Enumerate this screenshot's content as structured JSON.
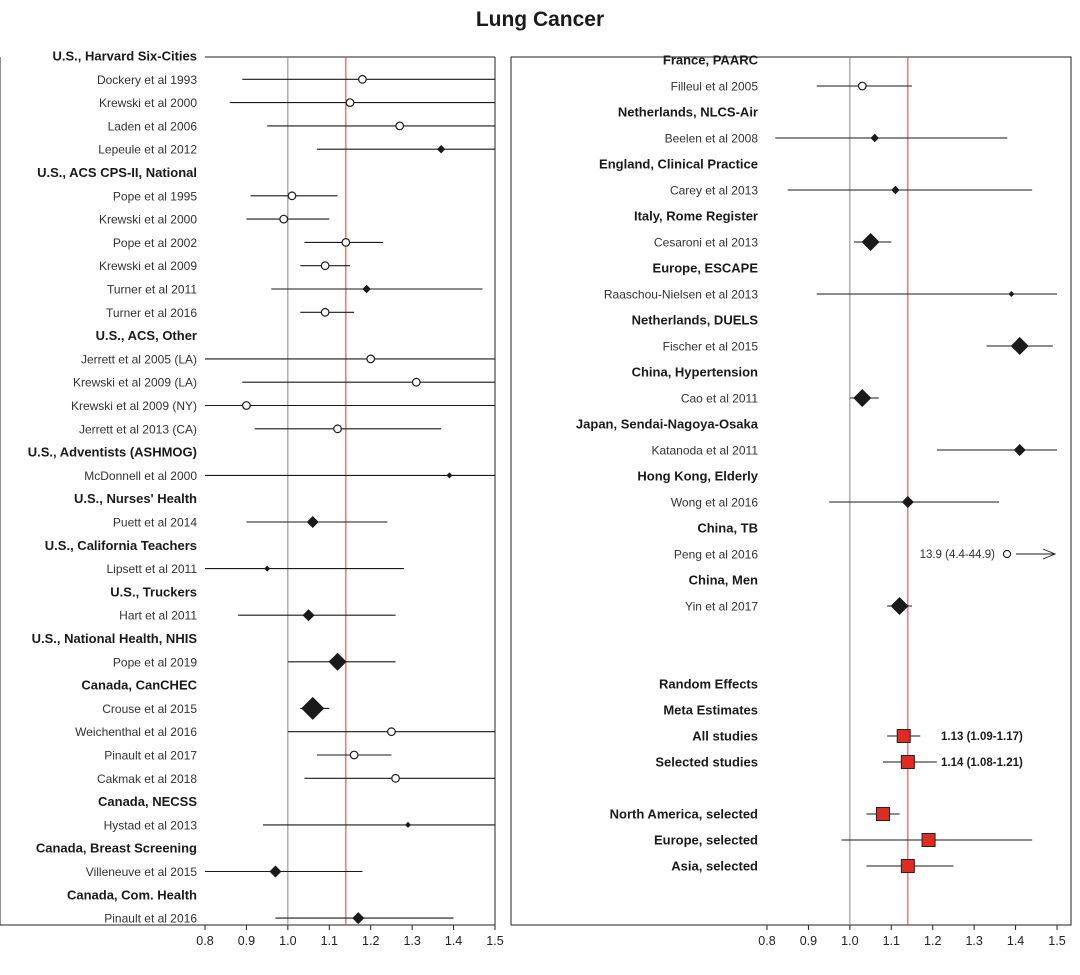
{
  "title": "Lung Cancer",
  "colors": {
    "reference_line": "#888888",
    "pooled_line": "#e53935",
    "pooled_marker": "#e02b20",
    "marker": "#1a1a1a",
    "ci_line": "#1a1a1a"
  },
  "chart_data": [
    {
      "type": "forest",
      "panel": "left",
      "xlim": [
        0.8,
        1.5
      ],
      "xticks": [
        "0.8",
        "0.9",
        "1.0",
        "1.1",
        "1.2",
        "1.3",
        "1.4",
        "1.5"
      ],
      "reference_value": 1.0,
      "pooled_value": 1.14,
      "rows": [
        {
          "kind": "group",
          "label": "U.S., Harvard Six-Cities"
        },
        {
          "kind": "study",
          "label": "Dockery et al 1993",
          "est": 1.18,
          "lo": 0.89,
          "hi": 1.5,
          "marker": "circle",
          "size": "small"
        },
        {
          "kind": "study",
          "label": "Krewski et al 2000",
          "est": 1.15,
          "lo": 0.86,
          "hi": 1.5,
          "marker": "circle",
          "size": "small"
        },
        {
          "kind": "study",
          "label": "Laden et al 2006",
          "est": 1.27,
          "lo": 0.95,
          "hi": 1.5,
          "marker": "circle",
          "size": "small"
        },
        {
          "kind": "study",
          "label": "Lepeule et al 2012",
          "est": 1.37,
          "lo": 1.07,
          "hi": 1.5,
          "marker": "diamond",
          "size": "small"
        },
        {
          "kind": "group",
          "label": "U.S., ACS CPS-II, National"
        },
        {
          "kind": "study",
          "label": "Pope et al 1995",
          "est": 1.01,
          "lo": 0.91,
          "hi": 1.12,
          "marker": "circle",
          "size": "small"
        },
        {
          "kind": "study",
          "label": "Krewski et al 2000",
          "est": 0.99,
          "lo": 0.9,
          "hi": 1.1,
          "marker": "circle",
          "size": "small"
        },
        {
          "kind": "study",
          "label": "Pope et al 2002",
          "est": 1.14,
          "lo": 1.04,
          "hi": 1.23,
          "marker": "circle",
          "size": "small"
        },
        {
          "kind": "study",
          "label": "Krewski et al 2009",
          "est": 1.09,
          "lo": 1.03,
          "hi": 1.15,
          "marker": "circle",
          "size": "small"
        },
        {
          "kind": "study",
          "label": "Turner et al 2011",
          "est": 1.19,
          "lo": 0.96,
          "hi": 1.47,
          "marker": "diamond",
          "size": "small"
        },
        {
          "kind": "study",
          "label": "Turner et al 2016",
          "est": 1.09,
          "lo": 1.03,
          "hi": 1.16,
          "marker": "circle",
          "size": "small"
        },
        {
          "kind": "group",
          "label": "U.S., ACS, Other"
        },
        {
          "kind": "study",
          "label": "Jerrett et al 2005 (LA)",
          "est": 1.2,
          "lo": 0.8,
          "hi": 1.5,
          "marker": "circle",
          "size": "small"
        },
        {
          "kind": "study",
          "label": "Krewski et al 2009 (LA)",
          "est": 1.31,
          "lo": 0.89,
          "hi": 1.5,
          "marker": "circle",
          "size": "small"
        },
        {
          "kind": "study",
          "label": "Krewski et al 2009 (NY)",
          "est": 0.9,
          "lo": 0.8,
          "hi": 1.5,
          "marker": "circle",
          "size": "small"
        },
        {
          "kind": "study",
          "label": "Jerrett et al 2013 (CA)",
          "est": 1.12,
          "lo": 0.92,
          "hi": 1.37,
          "marker": "circle",
          "size": "small"
        },
        {
          "kind": "group",
          "label": "U.S., Adventists (ASHMOG)"
        },
        {
          "kind": "study",
          "label": "McDonnell et al 2000",
          "est": 1.39,
          "lo": 0.8,
          "hi": 1.5,
          "marker": "diamond",
          "size": "tiny"
        },
        {
          "kind": "group",
          "label": "U.S., Nurses' Health"
        },
        {
          "kind": "study",
          "label": "Puett et al 2014",
          "est": 1.06,
          "lo": 0.9,
          "hi": 1.24,
          "marker": "diamond",
          "size": "medium"
        },
        {
          "kind": "group",
          "label": "U.S., California Teachers"
        },
        {
          "kind": "study",
          "label": "Lipsett et al 2011",
          "est": 0.95,
          "lo": 0.8,
          "hi": 1.28,
          "marker": "diamond",
          "size": "tiny"
        },
        {
          "kind": "group",
          "label": "U.S., Truckers"
        },
        {
          "kind": "study",
          "label": "Hart et al 2011",
          "est": 1.05,
          "lo": 0.88,
          "hi": 1.26,
          "marker": "diamond",
          "size": "medium"
        },
        {
          "kind": "group",
          "label": "U.S., National Health, NHIS"
        },
        {
          "kind": "study",
          "label": "Pope et al 2019",
          "est": 1.12,
          "lo": 1.0,
          "hi": 1.26,
          "marker": "diamond",
          "size": "large"
        },
        {
          "kind": "group",
          "label": "Canada, CanCHEC"
        },
        {
          "kind": "study",
          "label": "Crouse et al 2015",
          "est": 1.06,
          "lo": 1.03,
          "hi": 1.1,
          "marker": "diamond",
          "size": "xlarge"
        },
        {
          "kind": "study",
          "label": "Weichenthal et al 2016",
          "est": 1.25,
          "lo": 1.0,
          "hi": 1.5,
          "marker": "circle",
          "size": "small"
        },
        {
          "kind": "study",
          "label": "Pinault et al 2017",
          "est": 1.16,
          "lo": 1.07,
          "hi": 1.25,
          "marker": "circle",
          "size": "small"
        },
        {
          "kind": "study",
          "label": "Cakmak et al 2018",
          "est": 1.26,
          "lo": 1.04,
          "hi": 1.5,
          "marker": "circle",
          "size": "small"
        },
        {
          "kind": "group",
          "label": "Canada, NECSS"
        },
        {
          "kind": "study",
          "label": "Hystad et al 2013",
          "est": 1.29,
          "lo": 0.94,
          "hi": 1.5,
          "marker": "diamond",
          "size": "tiny"
        },
        {
          "kind": "group",
          "label": "Canada, Breast Screening"
        },
        {
          "kind": "study",
          "label": "Villeneuve et al 2015",
          "est": 0.97,
          "lo": 0.8,
          "hi": 1.18,
          "marker": "diamond",
          "size": "medium"
        },
        {
          "kind": "group",
          "label": "Canada, Com. Health"
        },
        {
          "kind": "study",
          "label": "Pinault et al 2016",
          "est": 1.17,
          "lo": 0.97,
          "hi": 1.4,
          "marker": "diamond",
          "size": "medium"
        }
      ]
    },
    {
      "type": "forest",
      "panel": "right",
      "xlim": [
        0.8,
        1.5
      ],
      "xticks": [
        "0.8",
        "0.9",
        "1.0",
        "1.1",
        "1.2",
        "1.3",
        "1.4",
        "1.5"
      ],
      "reference_value": 1.0,
      "pooled_value": 1.14,
      "rows": [
        {
          "kind": "group",
          "label": "France, PAARC"
        },
        {
          "kind": "study",
          "label": "Filleul et al 2005",
          "est": 1.03,
          "lo": 0.92,
          "hi": 1.15,
          "marker": "circle",
          "size": "small"
        },
        {
          "kind": "group",
          "label": "Netherlands, NLCS-Air"
        },
        {
          "kind": "study",
          "label": "Beelen et al 2008",
          "est": 1.06,
          "lo": 0.82,
          "hi": 1.38,
          "marker": "diamond",
          "size": "small"
        },
        {
          "kind": "group",
          "label": "England, Clinical Practice"
        },
        {
          "kind": "study",
          "label": "Carey et al 2013",
          "est": 1.11,
          "lo": 0.85,
          "hi": 1.44,
          "marker": "diamond",
          "size": "small"
        },
        {
          "kind": "group",
          "label": "Italy, Rome Register"
        },
        {
          "kind": "study",
          "label": "Cesaroni et al 2013",
          "est": 1.05,
          "lo": 1.01,
          "hi": 1.1,
          "marker": "diamond",
          "size": "large"
        },
        {
          "kind": "group",
          "label": "Europe, ESCAPE"
        },
        {
          "kind": "study",
          "label": "Raaschou-Nielsen et al 2013",
          "est": 1.39,
          "lo": 0.92,
          "hi": 1.5,
          "marker": "diamond",
          "size": "tiny"
        },
        {
          "kind": "group",
          "label": "Netherlands, DUELS"
        },
        {
          "kind": "study",
          "label": "Fischer et al 2015",
          "est": 1.41,
          "lo": 1.33,
          "hi": 1.49,
          "marker": "diamond",
          "size": "large"
        },
        {
          "kind": "group",
          "label": "China, Hypertension"
        },
        {
          "kind": "study",
          "label": "Cao et al 2011",
          "est": 1.03,
          "lo": 1.0,
          "hi": 1.07,
          "marker": "diamond",
          "size": "large"
        },
        {
          "kind": "group",
          "label": "Japan, Sendai-Nagoya-Osaka"
        },
        {
          "kind": "study",
          "label": "Katanoda et al 2011",
          "est": 1.41,
          "lo": 1.21,
          "hi": 1.5,
          "marker": "diamond",
          "size": "medium"
        },
        {
          "kind": "group",
          "label": "Hong Kong, Elderly"
        },
        {
          "kind": "study",
          "label": "Wong et al 2016",
          "est": 1.14,
          "lo": 0.95,
          "hi": 1.36,
          "marker": "diamond",
          "size": "medium"
        },
        {
          "kind": "group",
          "label": "China, TB"
        },
        {
          "kind": "study",
          "label": "Peng et al 2016",
          "est": 13.9,
          "lo": 4.4,
          "hi": 44.9,
          "marker": "circle",
          "size": "small",
          "off_scale": true,
          "annotation": "13.9 (4.4-44.9)"
        },
        {
          "kind": "group",
          "label": "China, Men"
        },
        {
          "kind": "study",
          "label": "Yin et al 2017",
          "est": 1.12,
          "lo": 1.09,
          "hi": 1.15,
          "marker": "diamond",
          "size": "large"
        },
        {
          "kind": "spacer"
        },
        {
          "kind": "spacer"
        },
        {
          "kind": "meta_heading",
          "label": "Random Effects"
        },
        {
          "kind": "meta_heading",
          "label": "Meta Estimates"
        },
        {
          "kind": "meta",
          "label": "All studies",
          "est": 1.13,
          "lo": 1.09,
          "hi": 1.17,
          "annotation": "1.13 (1.09-1.17)"
        },
        {
          "kind": "meta",
          "label": "Selected studies",
          "est": 1.14,
          "lo": 1.08,
          "hi": 1.21,
          "annotation": "1.14 (1.08-1.21)"
        },
        {
          "kind": "spacer"
        },
        {
          "kind": "meta",
          "label": "North America, selected",
          "est": 1.08,
          "lo": 1.04,
          "hi": 1.12
        },
        {
          "kind": "meta",
          "label": "Europe, selected",
          "est": 1.19,
          "lo": 0.98,
          "hi": 1.44
        },
        {
          "kind": "meta",
          "label": "Asia, selected",
          "est": 1.14,
          "lo": 1.04,
          "hi": 1.25
        }
      ]
    }
  ]
}
